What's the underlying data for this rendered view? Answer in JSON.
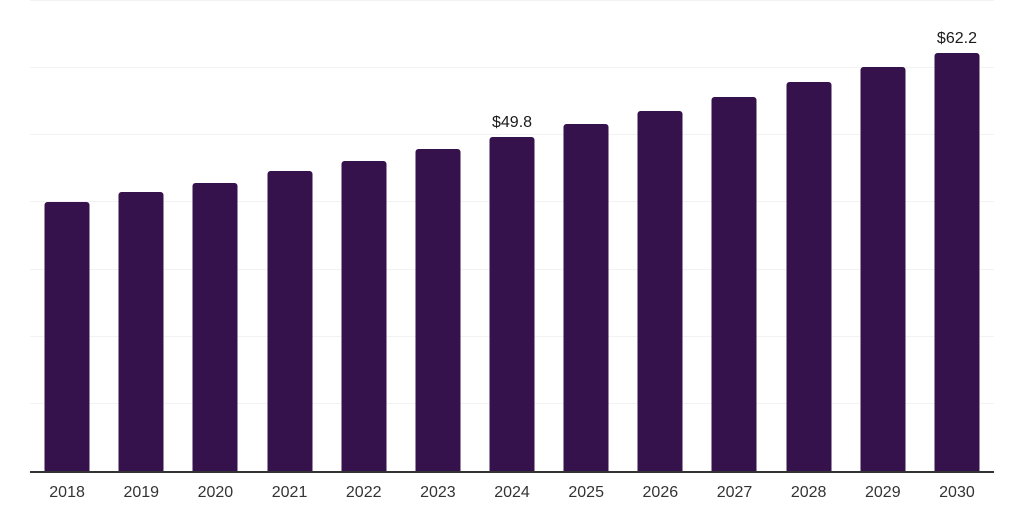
{
  "chart_data": {
    "type": "bar",
    "categories": [
      "2018",
      "2019",
      "2020",
      "2021",
      "2022",
      "2023",
      "2024",
      "2025",
      "2026",
      "2027",
      "2028",
      "2029",
      "2030"
    ],
    "values": [
      40.1,
      41.6,
      42.9,
      44.7,
      46.2,
      47.9,
      49.8,
      51.7,
      53.6,
      55.7,
      57.9,
      60.1,
      62.2
    ],
    "data_labels": {
      "2024": "$49.8",
      "2030": "$62.2"
    },
    "ylim": [
      0,
      70
    ],
    "gridline_step": 10,
    "grid": true,
    "legend_position": "none",
    "xlabel": "",
    "ylabel": "",
    "bar_color": "#35124b",
    "gridline_color": "#f2f2f2",
    "axis_line_color": "#333333",
    "data_label_color": "#1a1a1a",
    "tick_label_color": "#333333"
  }
}
